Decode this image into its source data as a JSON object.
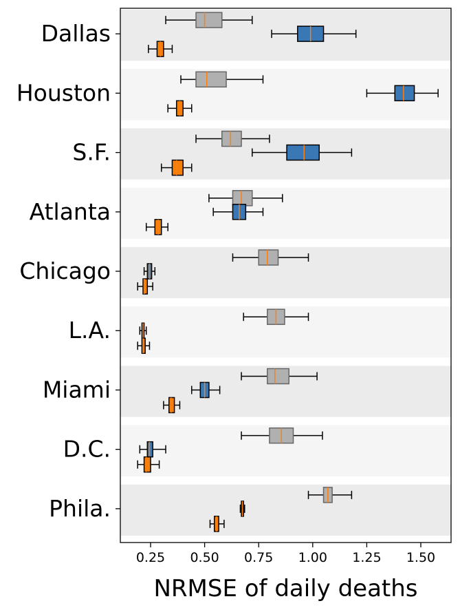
{
  "chart_data": {
    "type": "boxplot",
    "orientation": "horizontal",
    "xlabel": "NRMSE of daily deaths",
    "ylabel": "",
    "title": "",
    "xlim": [
      0.11,
      1.64
    ],
    "x_ticks": [
      0.25,
      0.5,
      0.75,
      1.0,
      1.25,
      1.5
    ],
    "x_tick_labels": [
      "0.25",
      "0.50",
      "0.75",
      "1.00",
      "1.25",
      "1.50"
    ],
    "grid": false,
    "band_colors": [
      "#ebebeb",
      "#f5f5f5"
    ],
    "series_styles": [
      {
        "key": "gray",
        "fill": "#b0b0b0",
        "edge": "#666666"
      },
      {
        "key": "blue",
        "fill": "#3a78b5",
        "edge": "#000000"
      },
      {
        "key": "orange",
        "fill": "#f57f0c",
        "edge": "#000000"
      }
    ],
    "median_color": "#ff7f0e",
    "categories": [
      {
        "label": "Dallas",
        "boxes": [
          {
            "series": "gray",
            "whislo": 0.32,
            "q1": 0.46,
            "med": 0.5,
            "q3": 0.58,
            "whishi": 0.72
          },
          {
            "series": "blue",
            "whislo": 0.81,
            "q1": 0.93,
            "med": 0.99,
            "q3": 1.05,
            "whishi": 1.2
          },
          {
            "series": "orange",
            "whislo": 0.24,
            "q1": 0.28,
            "med": 0.295,
            "q3": 0.31,
            "whishi": 0.35
          }
        ]
      },
      {
        "label": "Houston",
        "boxes": [
          {
            "series": "gray",
            "whislo": 0.39,
            "q1": 0.46,
            "med": 0.51,
            "q3": 0.6,
            "whishi": 0.77
          },
          {
            "series": "blue",
            "whislo": 1.25,
            "q1": 1.38,
            "med": 1.42,
            "q3": 1.47,
            "whishi": 1.58
          },
          {
            "series": "orange",
            "whislo": 0.33,
            "q1": 0.37,
            "med": 0.385,
            "q3": 0.4,
            "whishi": 0.44
          }
        ]
      },
      {
        "label": "S.F.",
        "boxes": [
          {
            "series": "gray",
            "whislo": 0.46,
            "q1": 0.58,
            "med": 0.62,
            "q3": 0.67,
            "whishi": 0.8
          },
          {
            "series": "blue",
            "whislo": 0.72,
            "q1": 0.88,
            "med": 0.96,
            "q3": 1.03,
            "whishi": 1.18
          },
          {
            "series": "orange",
            "whislo": 0.3,
            "q1": 0.35,
            "med": 0.37,
            "q3": 0.4,
            "whishi": 0.44
          }
        ]
      },
      {
        "label": "Atlanta",
        "boxes": [
          {
            "series": "gray",
            "whislo": 0.52,
            "q1": 0.63,
            "med": 0.67,
            "q3": 0.72,
            "whishi": 0.86
          },
          {
            "series": "blue",
            "whislo": 0.54,
            "q1": 0.63,
            "med": 0.66,
            "q3": 0.69,
            "whishi": 0.77
          },
          {
            "series": "orange",
            "whislo": 0.23,
            "q1": 0.27,
            "med": 0.285,
            "q3": 0.3,
            "whishi": 0.33
          }
        ]
      },
      {
        "label": "Chicago",
        "boxes": [
          {
            "series": "gray",
            "whislo": 0.63,
            "q1": 0.75,
            "med": 0.79,
            "q3": 0.84,
            "whishi": 0.98
          },
          {
            "series": "blue",
            "whislo": 0.22,
            "q1": 0.235,
            "med": 0.245,
            "q3": 0.255,
            "whishi": 0.27
          },
          {
            "series": "orange",
            "whislo": 0.19,
            "q1": 0.215,
            "med": 0.22,
            "q3": 0.235,
            "whishi": 0.26
          }
        ]
      },
      {
        "label": "L.A.",
        "boxes": [
          {
            "series": "gray",
            "whislo": 0.68,
            "q1": 0.79,
            "med": 0.83,
            "q3": 0.87,
            "whishi": 0.98
          },
          {
            "series": "blue",
            "whislo": 0.2,
            "q1": 0.21,
            "med": 0.215,
            "q3": 0.22,
            "whishi": 0.23
          },
          {
            "series": "orange",
            "whislo": 0.19,
            "q1": 0.21,
            "med": 0.215,
            "q3": 0.225,
            "whishi": 0.245
          }
        ]
      },
      {
        "label": "Miami",
        "boxes": [
          {
            "series": "gray",
            "whislo": 0.67,
            "q1": 0.79,
            "med": 0.825,
            "q3": 0.89,
            "whishi": 1.02
          },
          {
            "series": "blue",
            "whislo": 0.44,
            "q1": 0.48,
            "med": 0.5,
            "q3": 0.52,
            "whishi": 0.57
          },
          {
            "series": "orange",
            "whislo": 0.31,
            "q1": 0.335,
            "med": 0.345,
            "q3": 0.36,
            "whishi": 0.385
          }
        ]
      },
      {
        "label": "D.C.",
        "boxes": [
          {
            "series": "gray",
            "whislo": 0.67,
            "q1": 0.8,
            "med": 0.855,
            "q3": 0.91,
            "whishi": 1.045
          },
          {
            "series": "blue",
            "whislo": 0.2,
            "q1": 0.235,
            "med": 0.245,
            "q3": 0.26,
            "whishi": 0.32
          },
          {
            "series": "orange",
            "whislo": 0.19,
            "q1": 0.22,
            "med": 0.23,
            "q3": 0.25,
            "whishi": 0.29
          }
        ]
      },
      {
        "label": "Phila.",
        "boxes": [
          {
            "series": "gray",
            "whislo": 0.98,
            "q1": 1.05,
            "med": 1.07,
            "q3": 1.09,
            "whishi": 1.18
          },
          {
            "series": "blue",
            "whislo": 0.665,
            "q1": 0.67,
            "med": 0.675,
            "q3": 0.68,
            "whishi": 0.685
          },
          {
            "series": "orange",
            "whislo": 0.525,
            "q1": 0.545,
            "med": 0.555,
            "q3": 0.565,
            "whishi": 0.59
          }
        ]
      }
    ]
  }
}
